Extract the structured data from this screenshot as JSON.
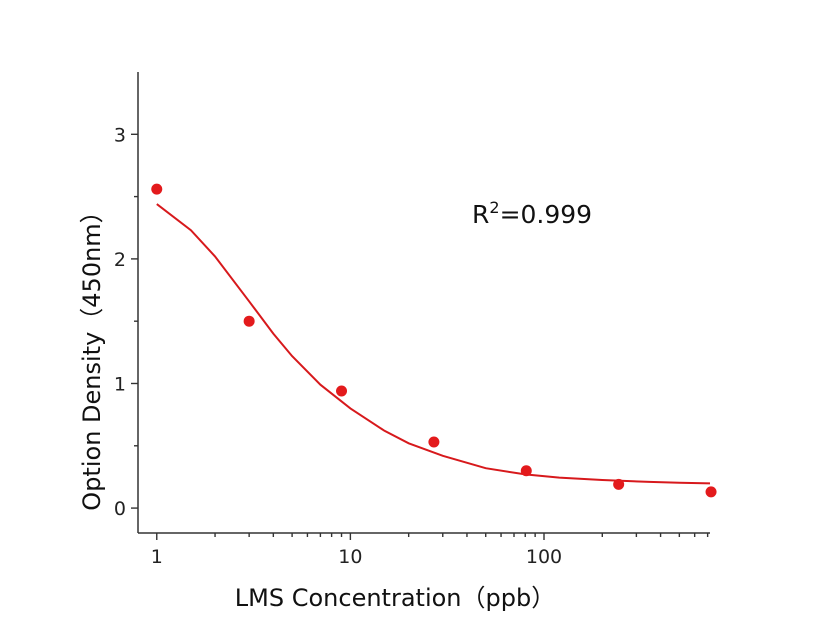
{
  "chart_data": {
    "type": "scatter",
    "xlabel": "LMS Concentration（ppb）",
    "ylabel": "Option Density（450nm）",
    "xscale": "log",
    "xlim": [
      0.8,
      720
    ],
    "ylim": [
      -0.2,
      3.5
    ],
    "xticks": [
      1,
      10,
      100
    ],
    "xtick_labels": [
      "1",
      "10",
      "100"
    ],
    "yticks": [
      0,
      1,
      2,
      3
    ],
    "ytick_labels": [
      "0",
      "1",
      "2",
      "3"
    ],
    "grid": false,
    "series": [
      {
        "kind": "points",
        "color": "#e31a1c",
        "x": [
          1,
          3,
          9,
          27,
          81,
          243,
          729
        ],
        "y": [
          2.56,
          1.5,
          0.94,
          0.53,
          0.3,
          0.19,
          0.13
        ]
      },
      {
        "kind": "fit-curve",
        "color": "#d7191c",
        "x": [
          1,
          1.5,
          2,
          3,
          4,
          5,
          7,
          10,
          15,
          20,
          30,
          50,
          80,
          120,
          200,
          350,
          500,
          720
        ],
        "y": [
          2.44,
          2.23,
          2.02,
          1.66,
          1.4,
          1.22,
          0.99,
          0.8,
          0.62,
          0.52,
          0.42,
          0.32,
          0.27,
          0.245,
          0.225,
          0.21,
          0.203,
          0.198
        ]
      }
    ],
    "annotation": {
      "base": "R",
      "sup": "2",
      "rest": "=0.999"
    }
  }
}
